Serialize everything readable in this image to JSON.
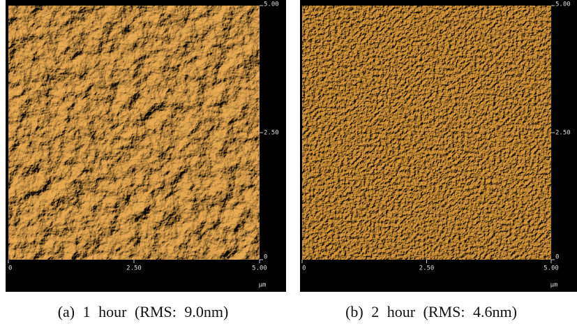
{
  "panels": [
    {
      "x_tick_labels": [
        "0",
        "2.50",
        "5.00"
      ],
      "y_tick_labels": [
        "5.00",
        "2.50",
        "0"
      ],
      "unit": "µm",
      "caption": "(a) 1 hour (RMS: 9.0nm)"
    },
    {
      "x_tick_labels": [
        "0",
        "2.50",
        "5.00"
      ],
      "y_tick_labels": [
        "5.00",
        "2.50",
        "0"
      ],
      "unit": "µm",
      "caption": "(b) 2 hour (RMS: 4.6nm)"
    }
  ]
}
